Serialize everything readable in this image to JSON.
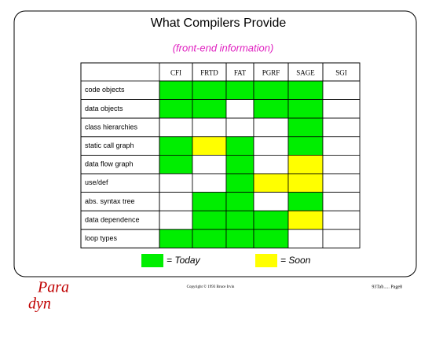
{
  "header": {
    "title": "What Compilers Provide",
    "subtitle": "(front-end information)"
  },
  "table": {
    "columns": [
      "CFI",
      "FRTD",
      "FAT",
      "PGRF",
      "SAGE",
      "SGI"
    ],
    "rows": [
      {
        "label": "code objects",
        "cells": [
          "#00ee00",
          "#00ee00",
          "#00ee00",
          "#00ee00",
          "#00ee00",
          "#ffffff"
        ]
      },
      {
        "label": "data objects",
        "cells": [
          "#00ee00",
          "#00ee00",
          "#ffffff",
          "#00ee00",
          "#00ee00",
          "#ffffff"
        ]
      },
      {
        "label": "class hierarchies",
        "cells": [
          "#ffffff",
          "#ffffff",
          "#ffffff",
          "#ffffff",
          "#00ee00",
          "#ffffff"
        ]
      },
      {
        "label": "static call graph",
        "cells": [
          "#00ee00",
          "#ffff00",
          "#00ee00",
          "#ffffff",
          "#00ee00",
          "#ffffff"
        ]
      },
      {
        "label": "data flow graph",
        "cells": [
          "#00ee00",
          "#ffffff",
          "#00ee00",
          "#ffffff",
          "#ffff00",
          "#ffffff"
        ]
      },
      {
        "label": "use/def",
        "cells": [
          "#ffffff",
          "#ffffff",
          "#00ee00",
          "#ffff00",
          "#ffff00",
          "#ffffff"
        ]
      },
      {
        "label": "abs. syntax tree",
        "cells": [
          "#ffffff",
          "#00ee00",
          "#00ee00",
          "#ffffff",
          "#00ee00",
          "#ffffff"
        ]
      },
      {
        "label": "data dependence",
        "cells": [
          "#ffffff",
          "#00ee00",
          "#00ee00",
          "#00ee00",
          "#ffff00",
          "#ffffff"
        ]
      },
      {
        "label": "loop types",
        "cells": [
          "#00ee00",
          "#00ee00",
          "#00ee00",
          "#00ee00",
          "#ffffff",
          "#ffffff"
        ]
      }
    ]
  },
  "legend": [
    {
      "color": "#00ee00",
      "label": "= Today"
    },
    {
      "color": "#ffff00",
      "label": "= Soon"
    }
  ],
  "footer": {
    "copyright": "Copyright © 1993 Bruce Irvin",
    "page": "93Tab..... Page8",
    "logo_top": "Para",
    "logo_bottom": "dyn"
  }
}
